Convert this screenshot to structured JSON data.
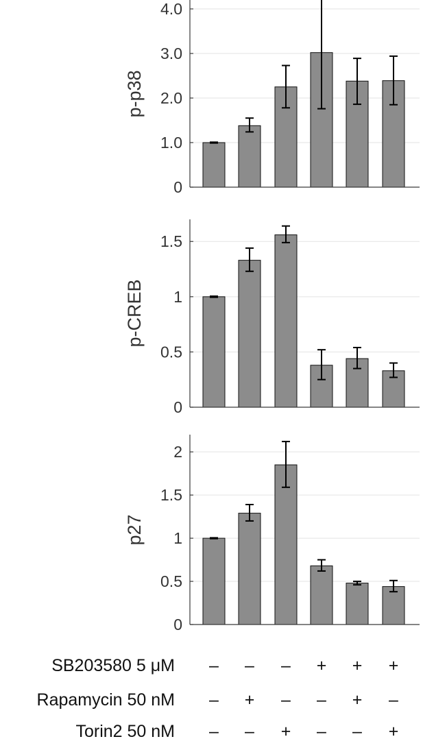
{
  "chart_data": [
    {
      "type": "bar",
      "ylabel": "p-p38",
      "ylim": [
        0,
        4.2
      ],
      "yticks": [
        0,
        1.0,
        2.0,
        3.0,
        4.0
      ],
      "ytick_labels": [
        "0",
        "1.0",
        "2.0",
        "3.0",
        "4.0"
      ],
      "grid": true,
      "values": [
        1.0,
        1.38,
        2.25,
        3.02,
        2.38,
        2.39
      ],
      "err_low": [
        0.99,
        1.24,
        1.78,
        1.76,
        1.86,
        1.85
      ],
      "err_high": [
        1.01,
        1.55,
        2.73,
        4.27,
        2.89,
        2.94
      ]
    },
    {
      "type": "bar",
      "ylabel": "p-CREB",
      "ylim": [
        0,
        1.7
      ],
      "yticks": [
        0,
        0.5,
        1,
        1.5
      ],
      "ytick_labels": [
        "0",
        "0.5",
        "1",
        "1.5"
      ],
      "grid": true,
      "values": [
        1.0,
        1.33,
        1.56,
        0.38,
        0.44,
        0.33
      ],
      "err_low": [
        0.995,
        1.23,
        1.49,
        0.25,
        0.35,
        0.27
      ],
      "err_high": [
        1.005,
        1.44,
        1.64,
        0.52,
        0.54,
        0.4
      ]
    },
    {
      "type": "bar",
      "ylabel": "p27",
      "ylim": [
        0,
        2.2
      ],
      "yticks": [
        0,
        0.5,
        1,
        1.5,
        2
      ],
      "ytick_labels": [
        "0",
        "0.5",
        "1",
        "1.5",
        "2"
      ],
      "grid": true,
      "values": [
        1.0,
        1.29,
        1.85,
        0.68,
        0.48,
        0.44
      ],
      "err_low": [
        0.995,
        1.2,
        1.59,
        0.62,
        0.46,
        0.38
      ],
      "err_high": [
        1.005,
        1.39,
        2.12,
        0.75,
        0.5,
        0.51
      ]
    }
  ],
  "conditions": [
    {
      "label": "SB203580 5 μM",
      "signs": [
        "–",
        "–",
        "–",
        "+",
        "+",
        "+"
      ]
    },
    {
      "label": "Rapamycin 50 nM",
      "signs": [
        "–",
        "+",
        "–",
        "–",
        "+",
        "–"
      ]
    },
    {
      "label": "Torin2 50 nM",
      "signs": [
        "–",
        "–",
        "+",
        "–",
        "–",
        "+"
      ]
    }
  ],
  "colors": {
    "bar": "#8c8c8c",
    "bar_edge": "#111111",
    "grid": "#e3e3e3",
    "axis": "#3a3a3a",
    "error_bar": "#000000"
  }
}
